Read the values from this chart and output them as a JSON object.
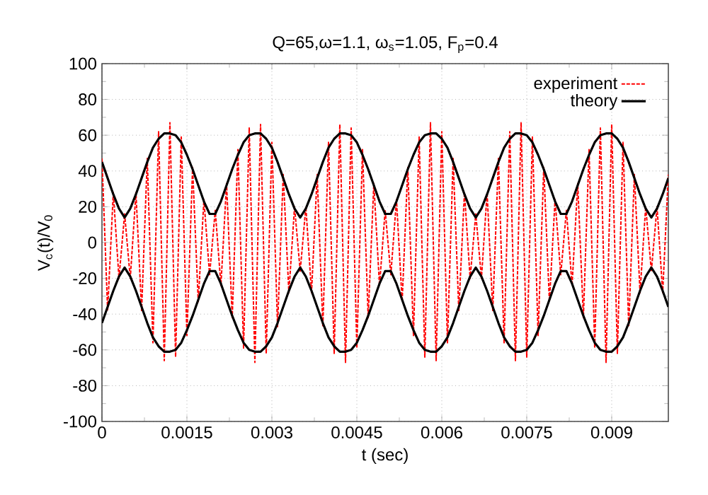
{
  "chart_data": {
    "type": "line",
    "title": "Q=65,ω=1.1, ω$_{s}$=1.05, F$_{p}$=0.4",
    "xlabel": "t (sec)",
    "ylabel": "V$_{c}$(t)/V$_{0}$",
    "xlim": [
      0,
      0.01
    ],
    "ylim": [
      -100,
      100
    ],
    "xticks": [
      0,
      0.0015,
      0.003,
      0.0045,
      0.006,
      0.0075,
      0.009
    ],
    "yticks": [
      -100,
      -80,
      -60,
      -40,
      -20,
      0,
      20,
      40,
      60,
      80,
      100
    ],
    "grid": true,
    "legend": "top right",
    "x": [
      0,
      0.0001,
      0.0002,
      0.0003,
      0.0004,
      0.0005,
      0.0006,
      0.0007,
      0.0008,
      0.0009,
      0.001,
      0.0011,
      0.0012,
      0.0013,
      0.0014,
      0.0015,
      0.0016,
      0.0017,
      0.0018,
      0.0019,
      0.002,
      0.0021,
      0.0022,
      0.0023,
      0.0024,
      0.0025,
      0.0026,
      0.0027,
      0.0028,
      0.0029,
      0.003,
      0.0031,
      0.0032,
      0.0033,
      0.0034,
      0.0035,
      0.0036,
      0.0037,
      0.0038,
      0.0039,
      0.004,
      0.0041,
      0.0042,
      0.0043,
      0.0044,
      0.0045,
      0.0046,
      0.0047,
      0.0048,
      0.0049,
      0.005,
      0.0051,
      0.0052,
      0.0053,
      0.0054,
      0.0055,
      0.0056,
      0.0057,
      0.0058,
      0.0059,
      0.006,
      0.0061,
      0.0062,
      0.0063,
      0.0064,
      0.0065,
      0.0066,
      0.0067,
      0.0068,
      0.0069,
      0.007,
      0.0071,
      0.0072,
      0.0073,
      0.0074,
      0.0075,
      0.0076,
      0.0077,
      0.0078,
      0.0079,
      0.008,
      0.0081,
      0.0082,
      0.0083,
      0.0084,
      0.0085,
      0.0086,
      0.0087,
      0.0088,
      0.0089,
      0.009,
      0.0091,
      0.0092,
      0.0093,
      0.0094,
      0.0095,
      0.0096,
      0.0097,
      0.0098,
      0.0099,
      0.01
    ],
    "series": [
      {
        "name": "experiment",
        "color": "#ff0000",
        "line_style": "dashed",
        "values": [
          47,
          -38,
          28,
          -20,
          16,
          -20,
          28,
          -38,
          47,
          -56,
          62,
          -66,
          67,
          -64,
          59,
          -52,
          42,
          -33,
          24,
          -18,
          18,
          -24,
          33,
          -42,
          52,
          -59,
          64,
          -67,
          66,
          -62,
          56,
          -47,
          38,
          -28,
          20,
          -16,
          20,
          -28,
          38,
          -47,
          56,
          -62,
          66,
          -67,
          64,
          -59,
          52,
          -42,
          33,
          -24,
          18,
          -18,
          24,
          -33,
          42,
          -52,
          59,
          -64,
          67,
          -66,
          62,
          -56,
          47,
          -38,
          28,
          -20,
          16,
          -20,
          28,
          -38,
          47,
          -56,
          62,
          -66,
          67,
          -64,
          59,
          -52,
          42,
          -33,
          24,
          -18,
          18,
          -24,
          33,
          -42,
          52,
          -59,
          64,
          -67,
          66,
          -62,
          56,
          -47,
          38,
          -28,
          20,
          -16,
          20,
          -28,
          38
        ]
      },
      {
        "name": "theory",
        "color": "#000000",
        "line_style": "solid",
        "values": [
          45,
          36,
          27,
          19,
          14,
          19,
          27,
          36,
          45,
          53,
          58,
          61,
          61,
          60,
          56,
          49,
          41,
          32,
          23,
          16,
          16,
          23,
          32,
          41,
          49,
          56,
          60,
          61,
          61,
          58,
          53,
          45,
          36,
          27,
          19,
          14,
          19,
          27,
          36,
          45,
          53,
          58,
          61,
          61,
          60,
          56,
          49,
          41,
          32,
          23,
          16,
          16,
          23,
          32,
          41,
          49,
          56,
          60,
          61,
          61,
          58,
          53,
          45,
          36,
          27,
          19,
          14,
          19,
          27,
          36,
          45,
          53,
          58,
          61,
          61,
          60,
          56,
          49,
          41,
          32,
          23,
          16,
          16,
          23,
          32,
          41,
          49,
          56,
          60,
          61,
          61,
          58,
          53,
          45,
          36,
          27,
          19,
          14,
          19,
          27,
          36
        ]
      },
      {
        "color": "#000000",
        "line_style": "solid",
        "values": [
          -45,
          -36,
          -27,
          -19,
          -14,
          -19,
          -27,
          -36,
          -45,
          -53,
          -58,
          -61,
          -61,
          -60,
          -56,
          -49,
          -41,
          -32,
          -23,
          -16,
          -16,
          -23,
          -32,
          -41,
          -49,
          -56,
          -60,
          -61,
          -61,
          -58,
          -53,
          -45,
          -36,
          -27,
          -19,
          -14,
          -19,
          -27,
          -36,
          -45,
          -53,
          -58,
          -61,
          -61,
          -60,
          -56,
          -49,
          -41,
          -32,
          -23,
          -16,
          -16,
          -23,
          -32,
          -41,
          -49,
          -56,
          -60,
          -61,
          -61,
          -58,
          -53,
          -45,
          -36,
          -27,
          -19,
          -14,
          -19,
          -27,
          -36,
          -45,
          -53,
          -58,
          -61,
          -61,
          -60,
          -56,
          -49,
          -41,
          -32,
          -23,
          -16,
          -16,
          -23,
          -32,
          -41,
          -49,
          -56,
          -60,
          -61,
          -61,
          -58,
          -53,
          -45,
          -36,
          -27,
          -19,
          -14,
          -19,
          -27,
          -36
        ]
      }
    ]
  }
}
